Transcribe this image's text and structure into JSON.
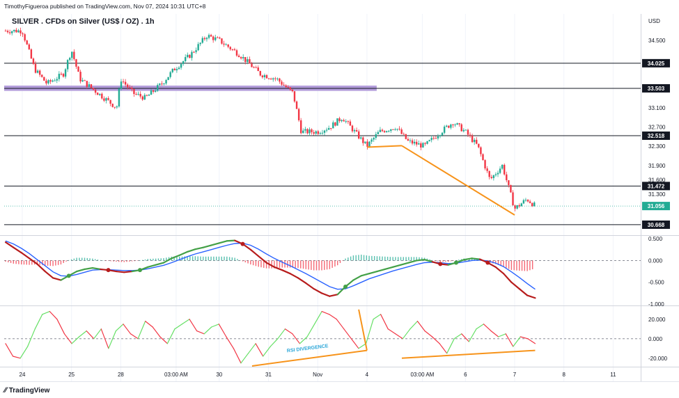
{
  "header": {
    "publisher": "TimothyFigueroa published on TradingView.com, Nov 07, 2024 10:31 UTC+8",
    "title": "SILVER . CFDs on Silver (US$ / OZ) . 1h",
    "currency": "USD",
    "brand": "TradingView"
  },
  "colors": {
    "up": "#22ab94",
    "down": "#f23645",
    "zone": "#b39ddb",
    "trend": "#f7931a",
    "macd_line": "#43a047",
    "macd_signal": "#2962ff",
    "macd_down": "#b71c1c",
    "rsi_up": "#66e066",
    "rsi_down": "#f23645",
    "last": "#22ab94"
  },
  "chart_data": [
    {
      "type": "candlestick",
      "title": "SILVER . CFDs on Silver (US$ / OZ) . 1h",
      "ylim": [
        30.45,
        35.05
      ],
      "yticks": [
        "34.500",
        "33.100",
        "32.700",
        "32.300",
        "31.900",
        "31.600",
        "31.300"
      ],
      "x_labels": [
        "24",
        "25",
        "28",
        "03:00 AM",
        "30",
        "31",
        "Nov",
        "4",
        "03:00 AM",
        "6",
        "7",
        "8",
        "11"
      ],
      "horizontal_levels": [
        "34.025",
        "33.503",
        "32.518",
        "31.472",
        "30.668"
      ],
      "last_price": "31.056",
      "zone": {
        "from": 33.45,
        "to": 33.56,
        "x_start": "24",
        "x_end": "4"
      },
      "trendlines": [
        {
          "from": [
            "Nov 4",
            32.28
          ],
          "to": [
            "Nov 4 17:00",
            32.31
          ]
        },
        {
          "from": [
            "Nov 4 17:00",
            32.31
          ],
          "to": [
            "Nov 7",
            30.87
          ]
        }
      ],
      "close_path": [
        [
          "Oct 24 00:00",
          34.7
        ],
        [
          "Oct 24 06:00",
          33.9
        ],
        [
          "Oct 24 12:00",
          33.6
        ],
        [
          "Oct 24 20:00",
          33.8
        ],
        [
          "Oct 25 00:00",
          34.3
        ],
        [
          "Oct 25 04:00",
          33.7
        ],
        [
          "Oct 25 10:00",
          33.5
        ],
        [
          "Oct 25 16:00",
          33.3
        ],
        [
          "Oct 25 22:00",
          33.1
        ],
        [
          "Oct 28 00:00",
          33.7
        ],
        [
          "Oct 28 06:00",
          33.4
        ],
        [
          "Oct 28 12:00",
          33.3
        ],
        [
          "Oct 28 20:00",
          33.6
        ],
        [
          "Oct 29 02:00",
          33.9
        ],
        [
          "Oct 29 10:00",
          34.2
        ],
        [
          "Oct 29 18:00",
          34.6
        ],
        [
          "Oct 30 00:00",
          34.5
        ],
        [
          "Oct 30 10:00",
          34.2
        ],
        [
          "Oct 30 20:00",
          33.8
        ],
        [
          "Oct 31 04:00",
          33.7
        ],
        [
          "Oct 31 12:00",
          33.4
        ],
        [
          "Oct 31 16:00",
          32.6
        ],
        [
          "Nov 1 00:00",
          32.6
        ],
        [
          "Nov 1 06:00",
          32.7
        ],
        [
          "Nov 1 12:00",
          32.9
        ],
        [
          "Nov 1 20:00",
          32.5
        ],
        [
          "Nov 4 00:00",
          32.3
        ],
        [
          "Nov 4 06:00",
          32.6
        ],
        [
          "Nov 4 14:00",
          32.7
        ],
        [
          "Nov 4 20:00",
          32.4
        ],
        [
          "Nov 5 04:00",
          32.3
        ],
        [
          "Nov 5 12:00",
          32.6
        ],
        [
          "Nov 5 18:00",
          32.8
        ],
        [
          "Nov 6 00:00",
          32.6
        ],
        [
          "Nov 6 06:00",
          32.3
        ],
        [
          "Nov 6 12:00",
          31.6
        ],
        [
          "Nov 6 18:00",
          31.9
        ],
        [
          "Nov 7 00:00",
          31.0
        ],
        [
          "Nov 7 06:00",
          31.2
        ],
        [
          "Nov 7 10:00",
          31.06
        ]
      ]
    },
    {
      "type": "line",
      "title": "MACD",
      "ylim": [
        -1.0,
        0.55
      ],
      "yticks": [
        "0.500",
        "0.000",
        "-0.500",
        "-1.000"
      ],
      "series": [
        {
          "values": [
            0.42,
            0.3,
            0.18,
            0.05,
            -0.08,
            -0.25,
            -0.4,
            -0.45,
            -0.35,
            -0.25,
            -0.2,
            -0.17,
            -0.2,
            -0.22,
            -0.25,
            -0.27,
            -0.25,
            -0.22,
            -0.15,
            -0.1,
            -0.05,
            0.05,
            0.12,
            0.2,
            0.26,
            0.3,
            0.35,
            0.4,
            0.45,
            0.46,
            0.38,
            0.25,
            0.1,
            -0.05,
            -0.15,
            -0.22,
            -0.3,
            -0.4,
            -0.52,
            -0.65,
            -0.75,
            -0.82,
            -0.78,
            -0.6,
            -0.45,
            -0.35,
            -0.3,
            -0.25,
            -0.2,
            -0.15,
            -0.1,
            -0.05,
            0.0,
            0.02,
            -0.03,
            -0.08,
            -0.1,
            -0.05,
            0.02,
            0.05,
            0.03,
            -0.05,
            -0.15,
            -0.3,
            -0.5,
            -0.65,
            -0.8,
            -0.86
          ]
        },
        {
          "values": [
            0.45,
            0.38,
            0.28,
            0.16,
            0.02,
            -0.12,
            -0.26,
            -0.35,
            -0.36,
            -0.32,
            -0.27,
            -0.22,
            -0.21,
            -0.21,
            -0.22,
            -0.23,
            -0.23,
            -0.22,
            -0.19,
            -0.15,
            -0.11,
            -0.05,
            0.02,
            0.09,
            0.15,
            0.2,
            0.25,
            0.3,
            0.35,
            0.39,
            0.4,
            0.35,
            0.26,
            0.15,
            0.05,
            -0.04,
            -0.12,
            -0.21,
            -0.3,
            -0.4,
            -0.5,
            -0.6,
            -0.66,
            -0.65,
            -0.58,
            -0.5,
            -0.42,
            -0.36,
            -0.3,
            -0.24,
            -0.19,
            -0.14,
            -0.09,
            -0.05,
            -0.04,
            -0.05,
            -0.07,
            -0.06,
            -0.03,
            0.0,
            0.01,
            -0.01,
            -0.06,
            -0.14,
            -0.26,
            -0.39,
            -0.53,
            -0.66
          ]
        }
      ]
    },
    {
      "type": "line",
      "title": "RSI",
      "ylim": [
        -28,
        32
      ],
      "yticks": [
        "20.000",
        "0.000",
        "-20.000"
      ],
      "annotations": [
        "RSI DIVERGENCE"
      ],
      "series": [
        {
          "values": [
            -5,
            -18,
            -20,
            -8,
            10,
            25,
            28,
            20,
            5,
            -5,
            2,
            8,
            0,
            10,
            -10,
            8,
            15,
            5,
            0,
            18,
            12,
            2,
            -5,
            10,
            15,
            20,
            8,
            5,
            12,
            15,
            2,
            -10,
            -25,
            -15,
            -5,
            -18,
            -8,
            0,
            10,
            5,
            -5,
            2,
            15,
            28,
            25,
            20,
            10,
            0,
            -10,
            -5,
            20,
            25,
            10,
            5,
            0,
            10,
            18,
            8,
            2,
            -5,
            -15,
            0,
            5,
            -3,
            10,
            15,
            8,
            2,
            5,
            -8,
            2,
            0,
            -5
          ]
        }
      ]
    }
  ]
}
